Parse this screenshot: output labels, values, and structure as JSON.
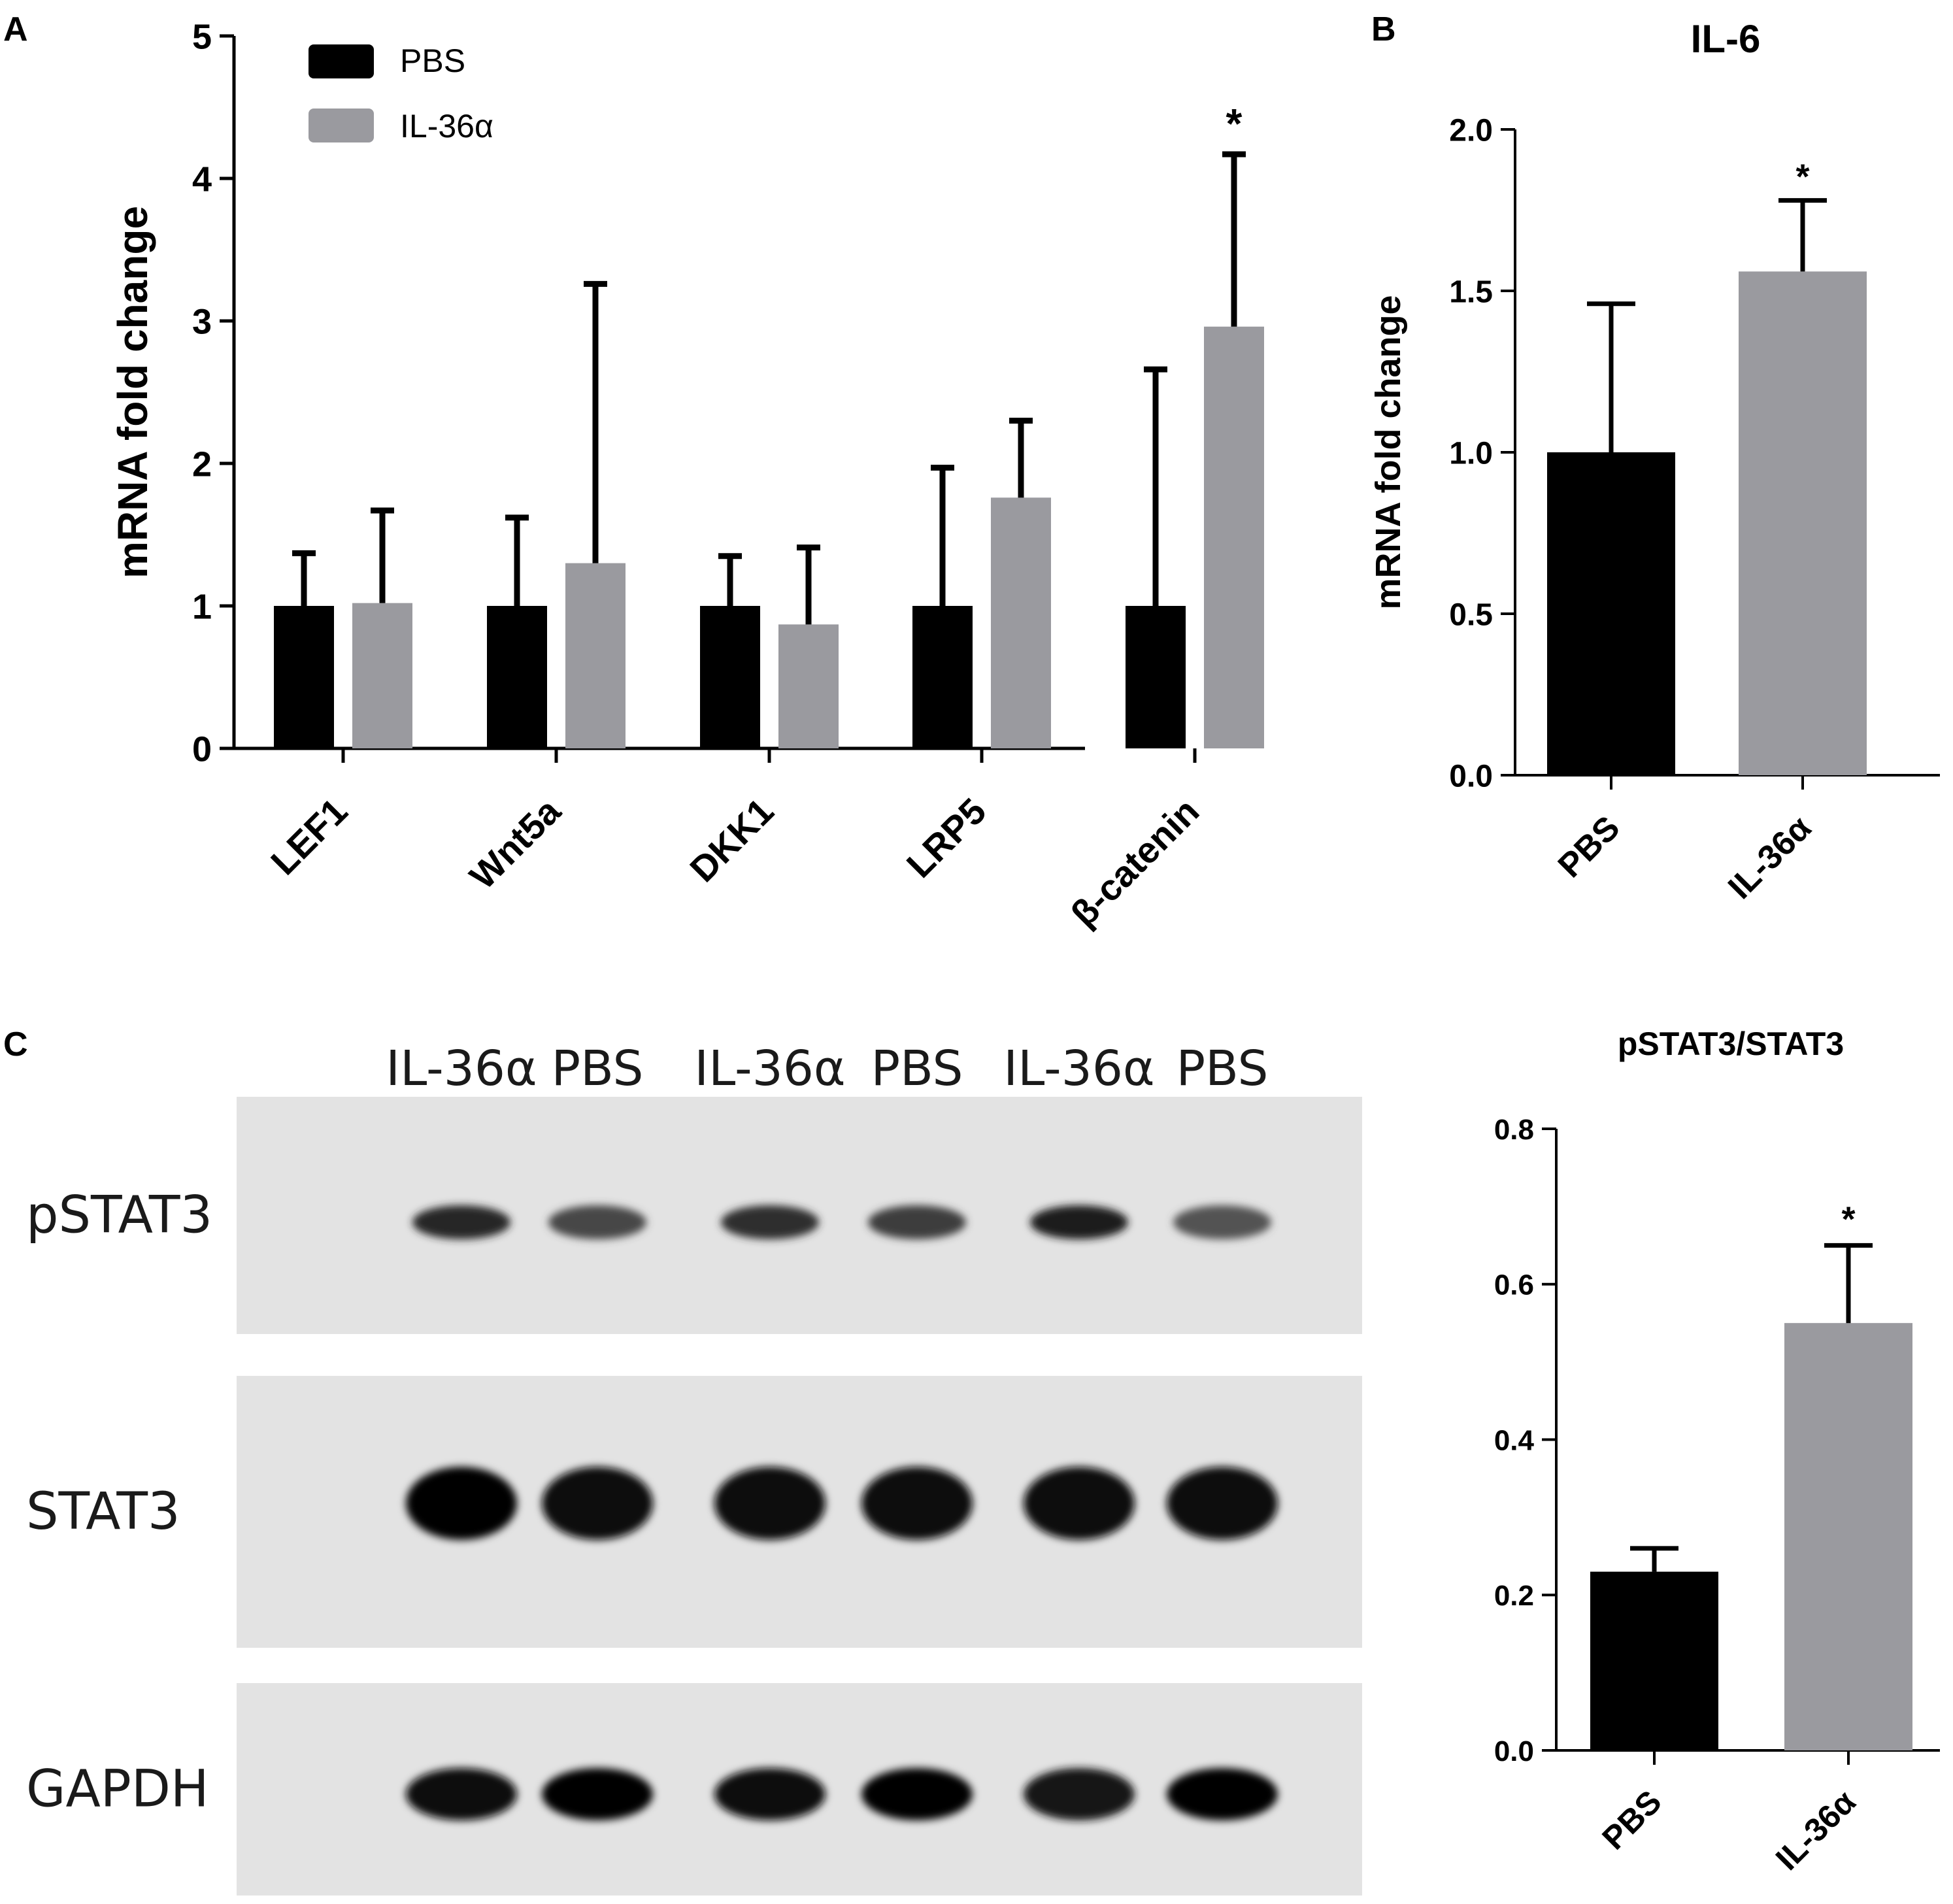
{
  "panels": {
    "a": {
      "letter": "A"
    },
    "b": {
      "letter": "B"
    },
    "c": {
      "letter": "C"
    }
  },
  "legend": {
    "pbs": {
      "label": "PBS",
      "color": "#000000"
    },
    "il36a": {
      "label": "IL-36α",
      "color": "#9a9a9f"
    }
  },
  "chart_data": [
    {
      "id": "A",
      "type": "bar",
      "title": "",
      "ylabel": "mRNA fold change",
      "xlabel": "",
      "ylim": [
        0,
        5
      ],
      "yticks": [
        "0",
        "1",
        "2",
        "3",
        "4",
        "5"
      ],
      "categories": [
        "LEF1",
        "Wnt5a",
        "DKK1",
        "LRP5",
        "β-catenin"
      ],
      "series": [
        {
          "name": "PBS",
          "color": "#000000",
          "values": [
            1.0,
            1.0,
            1.0,
            1.0,
            1.0
          ],
          "error_upper": [
            1.37,
            1.62,
            1.35,
            1.97,
            2.66
          ]
        },
        {
          "name": "IL-36α",
          "color": "#9a9a9f",
          "values": [
            1.02,
            1.3,
            0.87,
            1.76,
            2.96
          ],
          "error_upper": [
            1.67,
            3.26,
            1.41,
            2.3,
            4.17
          ]
        }
      ],
      "annotations": [
        {
          "category": "β-catenin",
          "series": "IL-36α",
          "text": "*"
        }
      ],
      "legend_position": "top-left"
    },
    {
      "id": "B",
      "type": "bar",
      "title": "IL-6",
      "ylabel": "mRNA fold change",
      "xlabel": "",
      "ylim": [
        0,
        2.0
      ],
      "yticks": [
        "0.0",
        "0.5",
        "1.0",
        "1.5",
        "2.0"
      ],
      "categories": [
        "PBS",
        "IL-36α"
      ],
      "values": [
        1.0,
        1.56
      ],
      "error_upper": [
        1.46,
        1.78
      ],
      "colors": [
        "#000000",
        "#9a9a9f"
      ],
      "annotations": [
        {
          "category": "IL-36α",
          "text": "*"
        }
      ]
    },
    {
      "id": "C",
      "type": "bar",
      "title": "pSTAT3/STAT3",
      "ylabel": "",
      "xlabel": "",
      "ylim": [
        0,
        0.8
      ],
      "yticks": [
        "0.0",
        "0.2",
        "0.4",
        "0.6",
        "0.8"
      ],
      "categories": [
        "PBS",
        "IL-36α"
      ],
      "values": [
        0.23,
        0.55
      ],
      "error_upper": [
        0.26,
        0.65
      ],
      "colors": [
        "#000000",
        "#9a9a9f"
      ],
      "annotations": [
        {
          "category": "IL-36α",
          "text": "*"
        }
      ]
    }
  ],
  "blot": {
    "lane_labels": [
      "IL-36α",
      "PBS",
      "IL-36α",
      "PBS",
      "IL-36α",
      "PBS"
    ],
    "rows": [
      {
        "label": "pSTAT3",
        "band_intensity": [
          0.85,
          0.72,
          0.82,
          0.76,
          0.88,
          0.68
        ]
      },
      {
        "label": "STAT3",
        "band_intensity": [
          0.98,
          0.97,
          0.96,
          0.97,
          0.96,
          0.97
        ]
      },
      {
        "label": "GAPDH",
        "band_intensity": [
          0.97,
          0.98,
          0.94,
          0.98,
          0.92,
          0.98
        ]
      }
    ]
  }
}
